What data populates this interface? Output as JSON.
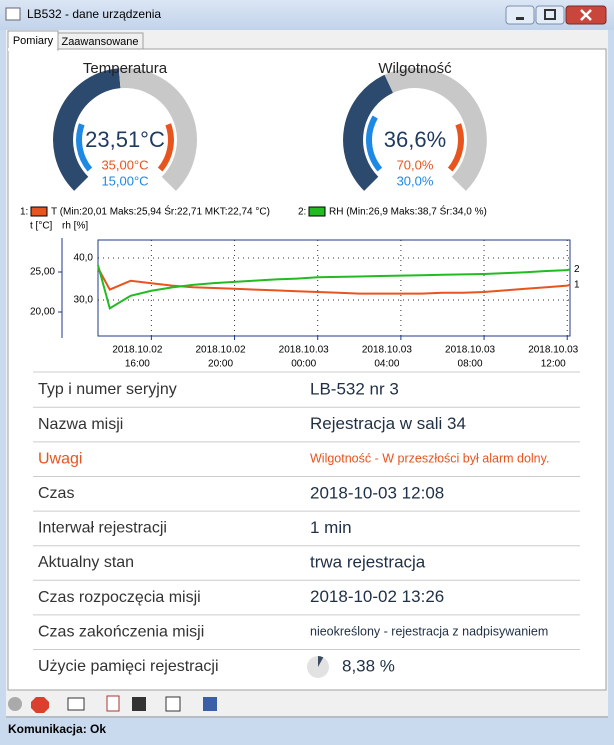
{
  "window": {
    "title": "LB532 - dane urządzenia"
  },
  "tabs": [
    "Pomiary",
    "Zaawansowane"
  ],
  "gauges": [
    {
      "title": "Temperatura",
      "value": "23,51°C",
      "max": "35,00°C",
      "min": "15,00°C"
    },
    {
      "title": "Wilgotność",
      "value": "36,6%",
      "max": "70,0%",
      "min": "30,0%"
    }
  ],
  "chart_data": {
    "type": "line",
    "ylabel": "t [°C]",
    "y2label": "rh [%]",
    "x": [
      "2018.10.02 13:26",
      "2018.10.02 14:00",
      "2018.10.02 15:00",
      "2018.10.02 16:00",
      "2018.10.02 17:00",
      "2018.10.02 18:00",
      "2018.10.02 19:00",
      "2018.10.02 20:00",
      "2018.10.02 21:00",
      "2018.10.02 22:00",
      "2018.10.02 23:00",
      "2018.10.03 00:00",
      "2018.10.03 01:00",
      "2018.10.03 02:00",
      "2018.10.03 03:00",
      "2018.10.03 04:00",
      "2018.10.03 05:00",
      "2018.10.03 06:00",
      "2018.10.03 07:00",
      "2018.10.03 08:00",
      "2018.10.03 09:00",
      "2018.10.03 10:00",
      "2018.10.03 11:00",
      "2018.10.03 12:00",
      "2018.10.03 12:08"
    ],
    "xlim": [
      "2018.10.02 13:26",
      "2018.10.03 12:08"
    ],
    "xticks": [
      {
        "value": "2018.10.02 16:00",
        "label": [
          "2018.10.02",
          "16:00"
        ]
      },
      {
        "value": "2018.10.02 20:00",
        "label": [
          "2018.10.02",
          "20:00"
        ]
      },
      {
        "value": "2018.10.03 00:00",
        "label": [
          "2018.10.03",
          "00:00"
        ]
      },
      {
        "value": "2018.10.03 04:00",
        "label": [
          "2018.10.03",
          "04:00"
        ]
      },
      {
        "value": "2018.10.03 08:00",
        "label": [
          "2018.10.03",
          "08:00"
        ]
      },
      {
        "value": "2018.10.03 12:00",
        "label": [
          "2018.10.03",
          "12:00"
        ]
      }
    ],
    "ylim": [
      17,
      29
    ],
    "yticks": [
      {
        "value": 20,
        "label": "20,00"
      },
      {
        "value": 25,
        "label": "25,00"
      }
    ],
    "y2lim": [
      21.4,
      44.3
    ],
    "y2ticks": [
      {
        "value": 30,
        "label": "30,0"
      },
      {
        "value": 40,
        "label": "40,0"
      }
    ],
    "grid": true,
    "series": [
      {
        "id": "1",
        "legend_key": "1:",
        "name": "T (Min:20,01 Maks:25,94 Śr:22,71 MKT:22,74 °C)",
        "color": "#e8541e",
        "values": [
          25.5,
          22.8,
          23.9,
          23.6,
          23.3,
          23.1,
          23.0,
          22.9,
          22.8,
          22.7,
          22.6,
          22.5,
          22.4,
          22.3,
          22.3,
          22.3,
          22.3,
          22.4,
          22.4,
          22.5,
          22.7,
          22.9,
          23.1,
          23.3,
          23.4
        ]
      },
      {
        "id": "2",
        "legend_key": "2:",
        "name": "RH (Min:26,9 Maks:38,7 Śr:34,0 %)",
        "color": "#22bb22",
        "axis": "y2",
        "values": [
          38.3,
          28.0,
          31.0,
          32.2,
          33.0,
          33.6,
          34.0,
          34.3,
          34.6,
          34.9,
          35.1,
          35.4,
          35.5,
          35.6,
          35.7,
          35.8,
          35.9,
          36.0,
          36.1,
          36.2,
          36.4,
          36.6,
          36.9,
          37.1,
          37.3
        ]
      }
    ]
  },
  "table": {
    "rows": [
      [
        "Typ i numer seryjny",
        "LB-532 nr 3"
      ],
      [
        "Nazwa misji",
        "Rejestracja w sali 34"
      ],
      [
        "Uwagi",
        "Wilgotność - W przeszłości był alarm dolny."
      ],
      [
        "Czas",
        "2018-10-03 12:08"
      ],
      [
        "Interwał rejestracji",
        "1 min"
      ],
      [
        "Aktualny stan",
        "trwa rejestracja"
      ],
      [
        "Czas rozpoczęcia misji",
        "2018-10-02 13:26"
      ],
      [
        "Czas zakończenia misji",
        "nieokreślony - rejestracja z nadpisywaniem"
      ],
      [
        "Użycie pamięci rejestracji",
        "8,38 %"
      ]
    ]
  },
  "status": "Komunikacja: Ok"
}
